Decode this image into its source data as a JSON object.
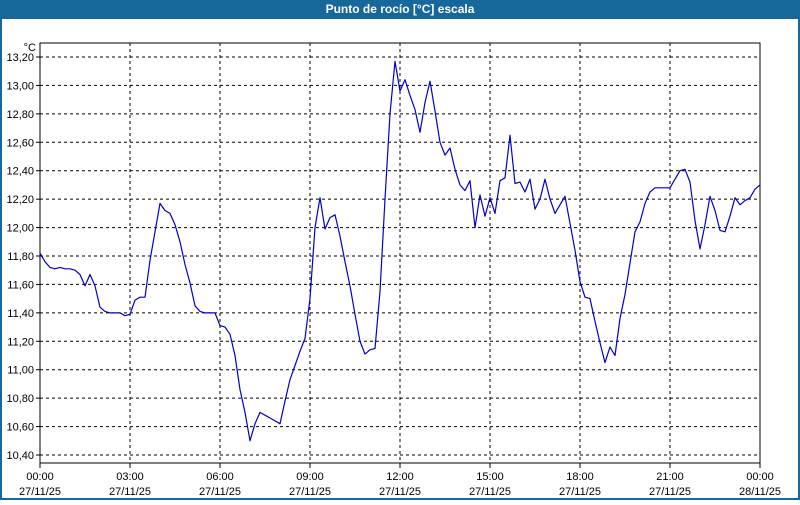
{
  "app": {
    "title": "Punto de rocío [°C] escala",
    "title_bar_color": "#16689b",
    "border_color": "#16689b",
    "background_color": "#ffffff"
  },
  "chart_data": {
    "type": "line",
    "title": "Punto de rocío [°C] escala",
    "y_unit_label": "°C",
    "ylabel": "",
    "xlabel": "",
    "ylim": [
      10.4,
      13.2
    ],
    "y_tick_step": 0.2,
    "grid": "dashed-black-on-white",
    "legend": "none",
    "line_color": "#0000cc",
    "y_ticks": [
      {
        "v": 13.2,
        "label": "13,20"
      },
      {
        "v": 13.0,
        "label": "13,00"
      },
      {
        "v": 12.8,
        "label": "12,80"
      },
      {
        "v": 12.6,
        "label": "12,60"
      },
      {
        "v": 12.4,
        "label": "12,40"
      },
      {
        "v": 12.2,
        "label": "12,20"
      },
      {
        "v": 12.0,
        "label": "12,00"
      },
      {
        "v": 11.8,
        "label": "11,80"
      },
      {
        "v": 11.6,
        "label": "11,60"
      },
      {
        "v": 11.4,
        "label": "11,40"
      },
      {
        "v": 11.2,
        "label": "11,20"
      },
      {
        "v": 11.0,
        "label": "11,00"
      },
      {
        "v": 10.8,
        "label": "10,80"
      },
      {
        "v": 10.6,
        "label": "10,60"
      },
      {
        "v": 10.4,
        "label": "10,40"
      }
    ],
    "x_ticks": [
      {
        "t": 0,
        "time": "00:00",
        "date": "27/11/25"
      },
      {
        "t": 180,
        "time": "03:00",
        "date": "27/11/25"
      },
      {
        "t": 360,
        "time": "06:00",
        "date": "27/11/25"
      },
      {
        "t": 540,
        "time": "09:00",
        "date": "27/11/25"
      },
      {
        "t": 720,
        "time": "12:00",
        "date": "27/11/25"
      },
      {
        "t": 900,
        "time": "15:00",
        "date": "27/11/25"
      },
      {
        "t": 1080,
        "time": "18:00",
        "date": "27/11/25"
      },
      {
        "t": 1260,
        "time": "21:00",
        "date": "27/11/25"
      },
      {
        "t": 1440,
        "time": "00:00",
        "date": "28/11/25"
      }
    ],
    "x_range_minutes": [
      0,
      1440
    ],
    "series": [
      {
        "name": "Punto de rocío [°C]",
        "points": [
          [
            0,
            11.82
          ],
          [
            10,
            11.76
          ],
          [
            20,
            11.72
          ],
          [
            30,
            11.71
          ],
          [
            40,
            11.72
          ],
          [
            50,
            11.71
          ],
          [
            60,
            11.71
          ],
          [
            70,
            11.7
          ],
          [
            80,
            11.67
          ],
          [
            90,
            11.59
          ],
          [
            100,
            11.67
          ],
          [
            110,
            11.59
          ],
          [
            120,
            11.44
          ],
          [
            130,
            11.41
          ],
          [
            140,
            11.4
          ],
          [
            150,
            11.4
          ],
          [
            160,
            11.4
          ],
          [
            170,
            11.38
          ],
          [
            180,
            11.39
          ],
          [
            190,
            11.49
          ],
          [
            200,
            11.51
          ],
          [
            210,
            11.51
          ],
          [
            220,
            11.77
          ],
          [
            230,
            11.97
          ],
          [
            240,
            12.17
          ],
          [
            250,
            12.12
          ],
          [
            260,
            12.1
          ],
          [
            270,
            12.02
          ],
          [
            280,
            11.9
          ],
          [
            290,
            11.74
          ],
          [
            300,
            11.61
          ],
          [
            310,
            11.45
          ],
          [
            320,
            11.41
          ],
          [
            330,
            11.4
          ],
          [
            340,
            11.4
          ],
          [
            350,
            11.4
          ],
          [
            360,
            11.31
          ],
          [
            370,
            11.3
          ],
          [
            380,
            11.25
          ],
          [
            390,
            11.1
          ],
          [
            400,
            10.86
          ],
          [
            410,
            10.7
          ],
          [
            420,
            10.5
          ],
          [
            430,
            10.62
          ],
          [
            440,
            10.7
          ],
          [
            450,
            10.68
          ],
          [
            460,
            10.66
          ],
          [
            470,
            10.64
          ],
          [
            480,
            10.62
          ],
          [
            490,
            10.78
          ],
          [
            500,
            10.93
          ],
          [
            510,
            11.03
          ],
          [
            520,
            11.13
          ],
          [
            530,
            11.22
          ],
          [
            540,
            11.5
          ],
          [
            550,
            12.0
          ],
          [
            560,
            12.21
          ],
          [
            570,
            11.99
          ],
          [
            580,
            12.07
          ],
          [
            590,
            12.09
          ],
          [
            600,
            11.94
          ],
          [
            610,
            11.76
          ],
          [
            620,
            11.59
          ],
          [
            630,
            11.39
          ],
          [
            640,
            11.2
          ],
          [
            650,
            11.11
          ],
          [
            660,
            11.14
          ],
          [
            670,
            11.15
          ],
          [
            680,
            11.55
          ],
          [
            690,
            12.2
          ],
          [
            700,
            12.8
          ],
          [
            710,
            13.17
          ],
          [
            720,
            12.96
          ],
          [
            730,
            13.04
          ],
          [
            740,
            12.93
          ],
          [
            750,
            12.83
          ],
          [
            760,
            12.67
          ],
          [
            770,
            12.88
          ],
          [
            780,
            13.03
          ],
          [
            790,
            12.82
          ],
          [
            800,
            12.6
          ],
          [
            810,
            12.51
          ],
          [
            820,
            12.56
          ],
          [
            830,
            12.41
          ],
          [
            840,
            12.3
          ],
          [
            850,
            12.26
          ],
          [
            860,
            12.33
          ],
          [
            870,
            12.0
          ],
          [
            880,
            12.23
          ],
          [
            890,
            12.08
          ],
          [
            900,
            12.21
          ],
          [
            910,
            12.1
          ],
          [
            920,
            12.33
          ],
          [
            930,
            12.35
          ],
          [
            940,
            12.65
          ],
          [
            950,
            12.31
          ],
          [
            960,
            12.32
          ],
          [
            970,
            12.25
          ],
          [
            980,
            12.34
          ],
          [
            990,
            12.13
          ],
          [
            1000,
            12.2
          ],
          [
            1010,
            12.34
          ],
          [
            1020,
            12.2
          ],
          [
            1030,
            12.1
          ],
          [
            1040,
            12.16
          ],
          [
            1050,
            12.22
          ],
          [
            1060,
            12.03
          ],
          [
            1070,
            11.84
          ],
          [
            1080,
            11.62
          ],
          [
            1090,
            11.51
          ],
          [
            1100,
            11.5
          ],
          [
            1110,
            11.34
          ],
          [
            1120,
            11.19
          ],
          [
            1130,
            11.05
          ],
          [
            1140,
            11.16
          ],
          [
            1150,
            11.1
          ],
          [
            1160,
            11.36
          ],
          [
            1170,
            11.53
          ],
          [
            1180,
            11.75
          ],
          [
            1190,
            11.97
          ],
          [
            1200,
            12.04
          ],
          [
            1210,
            12.17
          ],
          [
            1220,
            12.25
          ],
          [
            1230,
            12.28
          ],
          [
            1240,
            12.28
          ],
          [
            1250,
            12.28
          ],
          [
            1260,
            12.28
          ],
          [
            1270,
            12.34
          ],
          [
            1280,
            12.4
          ],
          [
            1290,
            12.41
          ],
          [
            1300,
            12.32
          ],
          [
            1310,
            12.05
          ],
          [
            1320,
            11.85
          ],
          [
            1330,
            12.02
          ],
          [
            1340,
            12.22
          ],
          [
            1350,
            12.12
          ],
          [
            1360,
            11.98
          ],
          [
            1370,
            11.97
          ],
          [
            1380,
            12.08
          ],
          [
            1390,
            12.21
          ],
          [
            1400,
            12.16
          ],
          [
            1410,
            12.19
          ],
          [
            1420,
            12.21
          ],
          [
            1430,
            12.27
          ],
          [
            1440,
            12.3
          ]
        ]
      }
    ]
  }
}
